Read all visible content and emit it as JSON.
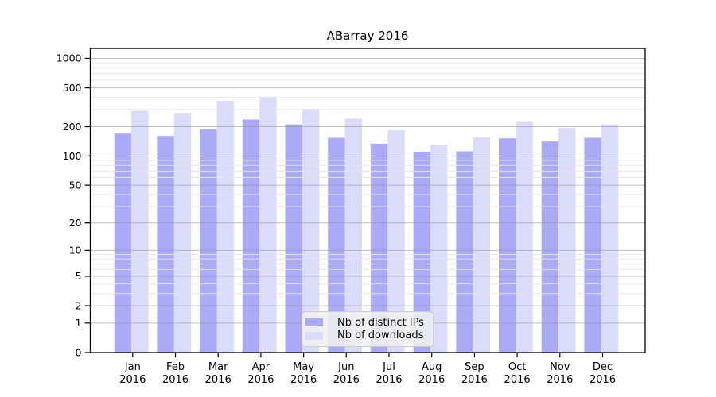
{
  "title": "ABarray 2016",
  "legend": {
    "items": [
      {
        "label": "Nb of distinct IPs",
        "series_key": "distinct_ips"
      },
      {
        "label": "Nb of downloads",
        "series_key": "downloads"
      }
    ]
  },
  "colors": {
    "distinct_ips": "#aaaaf7",
    "downloads": "#dbdbfa",
    "axis": "#000000",
    "text": "#000000",
    "grid_major": "#909090",
    "grid_minor": "#e4e4e9",
    "legend_background": "#f0f0f0",
    "legend_border": "#cccccc",
    "background": "#ffffff"
  },
  "chart_data": {
    "type": "bar",
    "title": "ABarray 2016",
    "categories": [
      "Jan 2016",
      "Feb 2016",
      "Mar 2016",
      "Apr 2016",
      "May 2016",
      "Jun 2016",
      "Jul 2016",
      "Aug 2016",
      "Sep 2016",
      "Oct 2016",
      "Nov 2016",
      "Dec 2016"
    ],
    "series": [
      {
        "name": "Nb of distinct IPs",
        "color_key": "distinct_ips",
        "values": [
          170,
          161,
          188,
          237,
          211,
          154,
          134,
          110,
          112,
          152,
          141,
          154
        ]
      },
      {
        "name": "Nb of downloads",
        "color_key": "downloads",
        "values": [
          292,
          278,
          368,
          405,
          305,
          242,
          184,
          130,
          156,
          224,
          195,
          211
        ]
      }
    ],
    "xlabel": "",
    "ylabel": "",
    "y_axis": {
      "scale": "log10(value+1)",
      "tick_values": [
        0,
        1,
        2,
        5,
        10,
        20,
        50,
        100,
        200,
        500,
        1000
      ],
      "minor_gridline_values": [
        3,
        4,
        6,
        7,
        8,
        9,
        30,
        40,
        60,
        70,
        80,
        90,
        300,
        400,
        600,
        700,
        800,
        900
      ],
      "range": [
        0,
        1270
      ]
    },
    "grid": true,
    "legend_position": "lower center"
  }
}
